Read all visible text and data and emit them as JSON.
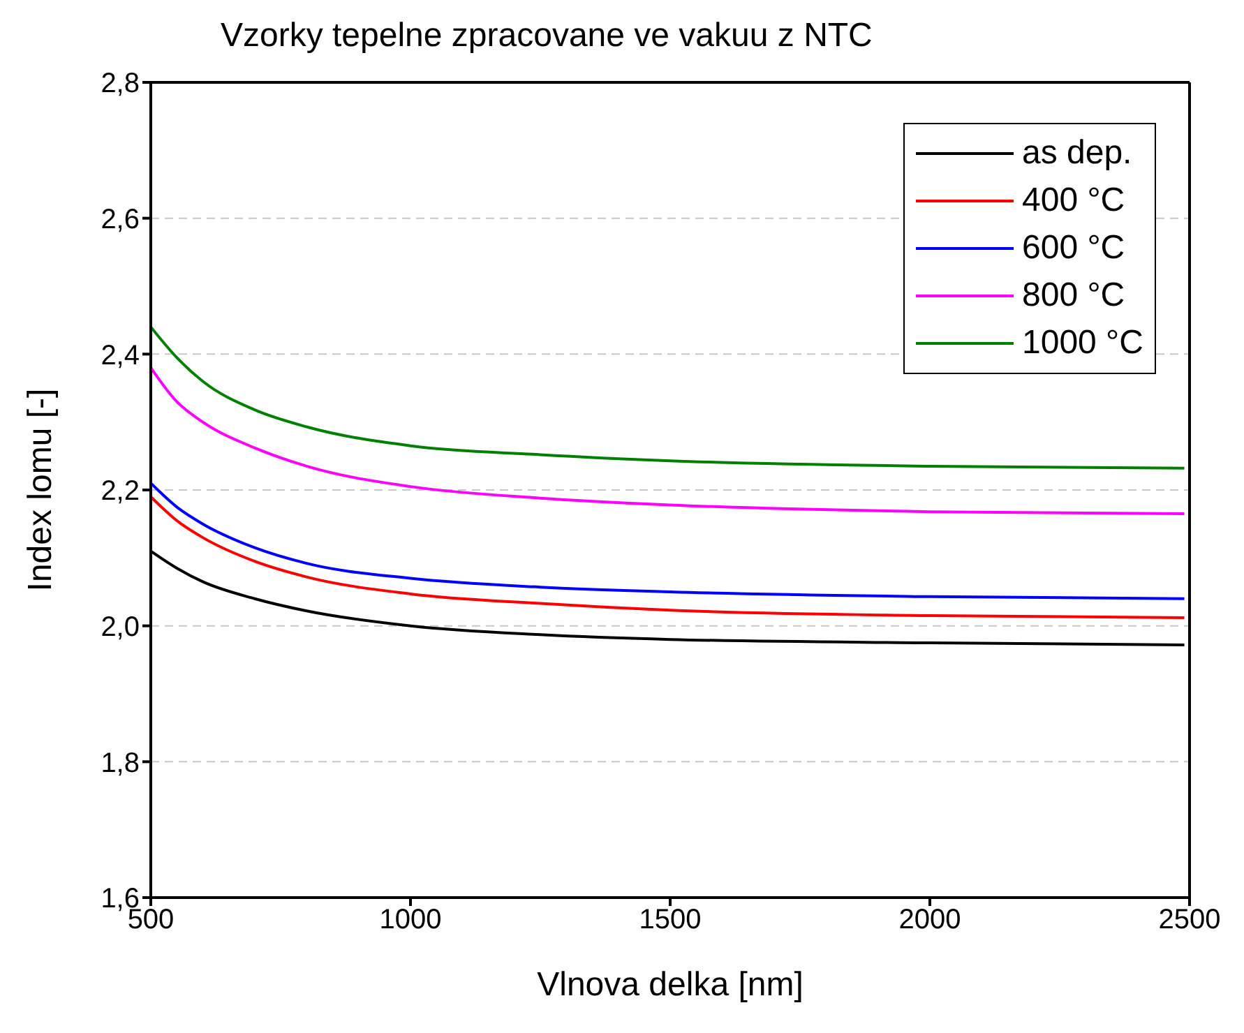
{
  "chart_data": {
    "type": "line",
    "title": "Vzorky tepelne zpracovane ve vakuu z NTC",
    "xlabel": "Vlnova delka [nm]",
    "ylabel": "Index lomu [-]",
    "x": [
      500,
      550,
      600,
      700,
      800,
      1000,
      1250,
      1500,
      2000,
      2490
    ],
    "series": [
      {
        "name": "as dep.",
        "color": "#000000",
        "values": [
          2.11,
          2.085,
          2.065,
          2.04,
          2.022,
          2.0,
          1.987,
          1.98,
          1.975,
          1.972
        ]
      },
      {
        "name": "400 °C",
        "color": "#ff0000",
        "values": [
          2.19,
          2.155,
          2.13,
          2.095,
          2.072,
          2.047,
          2.033,
          2.023,
          2.015,
          2.012
        ]
      },
      {
        "name": "600 °C",
        "color": "#0000ff",
        "values": [
          2.21,
          2.175,
          2.15,
          2.115,
          2.092,
          2.07,
          2.057,
          2.05,
          2.043,
          2.04
        ]
      },
      {
        "name": "800 °C",
        "color": "#ff00ff",
        "values": [
          2.38,
          2.33,
          2.3,
          2.262,
          2.235,
          2.205,
          2.188,
          2.178,
          2.168,
          2.165
        ]
      },
      {
        "name": "1000 °C",
        "color": "#008000",
        "values": [
          2.44,
          2.395,
          2.36,
          2.318,
          2.293,
          2.265,
          2.252,
          2.243,
          2.235,
          2.232
        ]
      }
    ],
    "xlim": [
      500,
      2500
    ],
    "xticks": [
      500,
      1000,
      1500,
      2000,
      2500
    ],
    "ylim": [
      1.6,
      2.8
    ],
    "yticks": [
      {
        "value": 1.6,
        "label": "1,6"
      },
      {
        "value": 1.8,
        "label": "1,8"
      },
      {
        "value": 2.0,
        "label": "2,0"
      },
      {
        "value": 2.2,
        "label": "2,2"
      },
      {
        "value": 2.4,
        "label": "2,4"
      },
      {
        "value": 2.6,
        "label": "2,6"
      },
      {
        "value": 2.8,
        "label": "2,8"
      }
    ],
    "grid": "y",
    "legend": "top right",
    "marker": "none",
    "line_style": "solid"
  }
}
